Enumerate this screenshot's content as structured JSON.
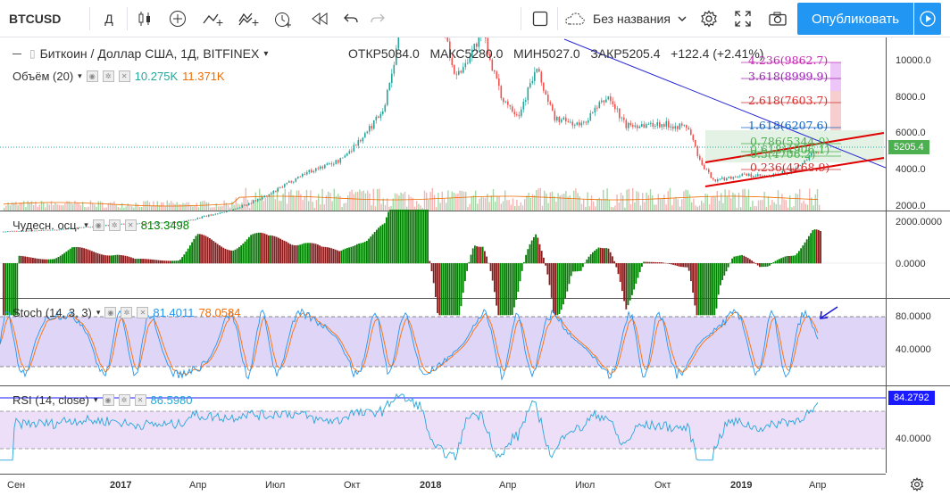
{
  "toolbar": {
    "symbol": "BTCUSD",
    "interval": "Д",
    "layout_name": "Без названия",
    "publish_label": "Опубликовать"
  },
  "main": {
    "title": "Биткоин / Доллар США, 1Д, BITFINEX",
    "open": "ОТКР5084.0",
    "high": "МАКС5280.0",
    "low": "МИН5027.0",
    "close": "ЗАКР5205.4",
    "change": "+122.4 (+2.41%)",
    "price_ticks": [
      "10000.0",
      "8000.0",
      "6000.0",
      "4000.0",
      "2000.0"
    ],
    "last_price": "5205.4",
    "fib_levels": [
      {
        "label": "4.236(9862.7)",
        "color": "#c02ab0"
      },
      {
        "label": "3.618(8999.9)",
        "color": "#9c27b0"
      },
      {
        "label": "2.618(7603.7)",
        "color": "#d32f2f"
      },
      {
        "label": "1.618(6207.6)",
        "color": "#1565c0"
      },
      {
        "label": "0.786(5344.0)",
        "color": "#4caf50"
      },
      {
        "label": "0.618(4906.1)",
        "color": "#4caf50"
      },
      {
        "label": "0.5(4706.2)",
        "color": "#4caf50"
      },
      {
        "label": "0.236(4268.9)",
        "color": "#d32f2f"
      }
    ]
  },
  "volume": {
    "label": "Объём (20)",
    "value1": "10.275K",
    "value2": "11.371K"
  },
  "awesome": {
    "label": "Чудесн. осц.",
    "value": "813.3498",
    "ticks": [
      "2000.0000",
      "0.0000"
    ]
  },
  "stoch": {
    "label": "Stoch (14, 3, 3)",
    "k": "81.4011",
    "d": "78.0584",
    "ticks": [
      "80.0000",
      "40.0000"
    ]
  },
  "rsi": {
    "label": "RSI (14, close)",
    "value": "86.5980",
    "last": "84.2792",
    "ticks": [
      "40.0000"
    ]
  },
  "xaxis": [
    "Сен",
    "2017",
    "Апр",
    "Июл",
    "Окт",
    "2018",
    "Апр",
    "Июл",
    "Окт",
    "2019",
    "Апр"
  ],
  "colors": {
    "accent": "#2196f3",
    "up": "#26a69a",
    "down": "#ef5350",
    "ao_up": "#008000",
    "ao_down": "#8b1a1a",
    "stoch_k": "#2196f3",
    "stoch_d": "#ff6d00",
    "rsi": "#26a6d9",
    "trend": "#e00000"
  }
}
